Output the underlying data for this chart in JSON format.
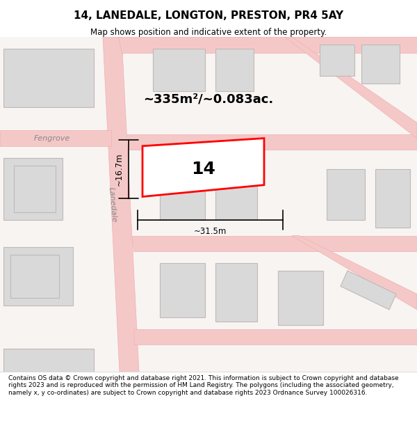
{
  "title": "14, LANEDALE, LONGTON, PRESTON, PR4 5AY",
  "subtitle": "Map shows position and indicative extent of the property.",
  "footer": "Contains OS data © Crown copyright and database right 2021. This information is subject to Crown copyright and database rights 2023 and is reproduced with the permission of HM Land Registry. The polygons (including the associated geometry, namely x, y co-ordinates) are subject to Crown copyright and database rights 2023 Ordnance Survey 100026316.",
  "area_label": "~335m²/~0.083ac.",
  "width_label": "~31.5m",
  "height_label": "~16.7m",
  "property_number": "14",
  "bg_color": "#f5f0ee",
  "road_color": "#f5c8c8",
  "road_outline_color": "#f0b0b0",
  "building_color": "#d9d9d9",
  "building_outline_color": "#c0b8b8",
  "property_color": "#ffffff",
  "property_outline_color": "#ff0000",
  "road_label1": "Lanedale",
  "road_label2": "Fengrove",
  "map_bg": "#f8f4f2"
}
